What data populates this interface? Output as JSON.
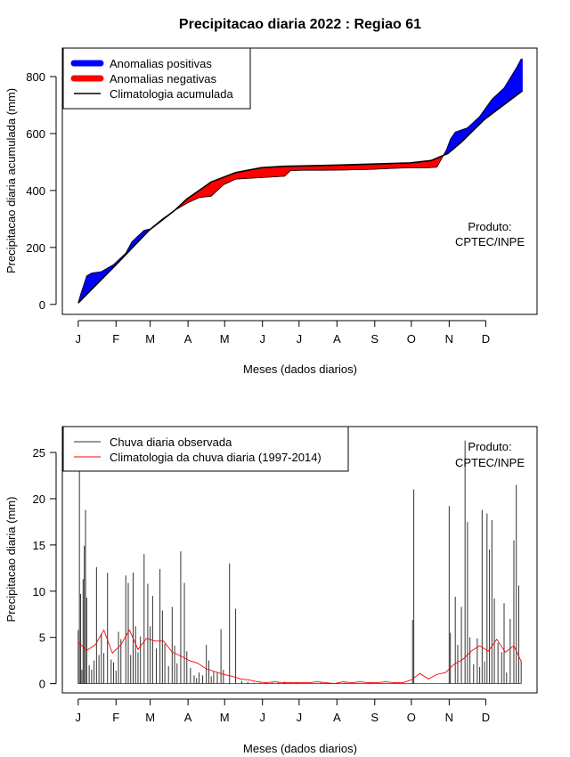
{
  "title": "Precipitacao diaria 2022 : Regiao 61",
  "colors": {
    "positive": "#0000ff",
    "negative": "#ff0000",
    "observed": "#333333",
    "climatology": "#ff0000",
    "line": "#000000"
  },
  "chart_data": [
    {
      "type": "area",
      "ylabel": "Precipitacao diaria acumulada (mm)",
      "xlabel": "Meses (dados diarios)",
      "months": [
        "J",
        "F",
        "M",
        "A",
        "M",
        "J",
        "J",
        "A",
        "S",
        "O",
        "N",
        "D"
      ],
      "xlim": [
        -12,
        377
      ],
      "ylim": [
        -35,
        900
      ],
      "yticks": [
        0,
        200,
        400,
        600,
        800
      ],
      "legend_position": "top-left",
      "legend": [
        {
          "label": "Anomalias positivas",
          "kind": "fill",
          "color": "#0000ff"
        },
        {
          "label": "Anomalias negativas",
          "kind": "fill",
          "color": "#ff0000"
        },
        {
          "label": "Climatologia acumulada",
          "kind": "line",
          "color": "#000000"
        }
      ],
      "annotation": [
        "Produto:",
        "CPTEC/INPE"
      ],
      "climatology_cumulative": {
        "day": [
          1,
          31,
          59,
          80,
          90,
          110,
          130,
          151,
          170,
          181,
          212,
          243,
          273,
          290,
          304,
          315,
          334,
          365
        ],
        "value": [
          5,
          135,
          260,
          330,
          370,
          430,
          463,
          480,
          485,
          486,
          489,
          493,
          497,
          505,
          530,
          570,
          650,
          750
        ]
      },
      "observed_cumulative": {
        "day": [
          1,
          3,
          8,
          12,
          20,
          30,
          40,
          45,
          55,
          60,
          70,
          80,
          90,
          100,
          110,
          120,
          130,
          150,
          170,
          175,
          185,
          200,
          220,
          240,
          260,
          273,
          288,
          295,
          303,
          306,
          310,
          320,
          330,
          340,
          350,
          360,
          364
        ],
        "value": [
          5,
          35,
          100,
          110,
          115,
          140,
          180,
          220,
          260,
          265,
          300,
          330,
          355,
          375,
          380,
          420,
          440,
          445,
          450,
          470,
          471,
          471,
          472,
          474,
          478,
          480,
          480,
          482,
          545,
          580,
          605,
          620,
          660,
          720,
          760,
          830,
          862
        ]
      }
    },
    {
      "type": "line",
      "ylabel": "Precipitacao diaria (mm)",
      "xlabel": "Meses (dados diarios)",
      "months": [
        "J",
        "F",
        "M",
        "A",
        "M",
        "J",
        "J",
        "A",
        "S",
        "O",
        "N",
        "D"
      ],
      "xlim": [
        -12,
        377
      ],
      "ylim": [
        -1,
        27.8
      ],
      "yticks": [
        0,
        5,
        10,
        15,
        20,
        25
      ],
      "legend_position": "top-left",
      "legend": [
        {
          "label": "Chuva diaria observada",
          "kind": "line",
          "color": "#333333"
        },
        {
          "label": "Climatologia da chuva diaria (1997-2014)",
          "kind": "line",
          "color": "#ff0000"
        }
      ],
      "annotation": [
        "Produto:",
        "CPTEC/INPE"
      ],
      "observed_daily": {
        "day": [
          1,
          2,
          3,
          4,
          5,
          6,
          7,
          8,
          10,
          12,
          14,
          16,
          18,
          20,
          22,
          25,
          28,
          30,
          32,
          34,
          36,
          40,
          42,
          44,
          46,
          48,
          50,
          52,
          55,
          58,
          60,
          62,
          65,
          68,
          70,
          72,
          75,
          78,
          80,
          82,
          85,
          88,
          90,
          93,
          96,
          98,
          100,
          103,
          106,
          108,
          110,
          112,
          115,
          118,
          120,
          125,
          130,
          135,
          140,
          145,
          150,
          155,
          160,
          165,
          170,
          175,
          180,
          200,
          220,
          240,
          260,
          275,
          276,
          305,
          306,
          310,
          312,
          315,
          318,
          320,
          322,
          325,
          328,
          330,
          332,
          334,
          336,
          338,
          340,
          342,
          345,
          348,
          350,
          352,
          355,
          358,
          360,
          362,
          364
        ],
        "value": [
          5.8,
          23,
          9.7,
          1.5,
          11.3,
          14.9,
          18.8,
          9.3,
          2,
          1.5,
          2.5,
          12.6,
          3.1,
          5.4,
          3.3,
          12,
          2.6,
          2.3,
          1.4,
          5.6,
          4.8,
          11.7,
          10.9,
          3.1,
          12,
          6.2,
          3.4,
          5.1,
          14,
          10.8,
          6.2,
          9.5,
          3.8,
          12.4,
          7.9,
          4.3,
          1.9,
          8.3,
          4.1,
          2.2,
          14.3,
          10.9,
          3.5,
          1.7,
          0.9,
          0.6,
          1.2,
          0.9,
          4.2,
          2.5,
          0.8,
          1.3,
          1.2,
          5.9,
          1.5,
          13,
          8.1,
          0.3,
          0.2,
          0.1,
          0.1,
          0.1,
          0.1,
          0.2,
          0.2,
          0.1,
          0.1,
          0.1,
          0.1,
          0.1,
          0.1,
          6.9,
          21,
          19.2,
          5.5,
          9.4,
          4.2,
          8.3,
          26.3,
          17.5,
          5,
          2.1,
          4.9,
          1.8,
          18.8,
          2.4,
          18.4,
          14.5,
          17.7,
          9.2,
          4.4,
          3.4,
          8.7,
          1.2,
          7,
          15.5,
          21.5,
          10.6,
          2.5
        ]
      },
      "climatology_daily": {
        "day": [
          1,
          8,
          15,
          22,
          29,
          36,
          43,
          50,
          57,
          64,
          71,
          78,
          85,
          92,
          99,
          106,
          113,
          120,
          127,
          134,
          141,
          148,
          155,
          162,
          169,
          176,
          183,
          190,
          197,
          204,
          211,
          218,
          225,
          232,
          239,
          246,
          253,
          260,
          267,
          274,
          281,
          288,
          295,
          302,
          309,
          316,
          323,
          330,
          337,
          344,
          351,
          358,
          364
        ],
        "value": [
          4.5,
          3.6,
          4.2,
          5.8,
          3.3,
          4.2,
          5.8,
          3.7,
          4.9,
          4.6,
          4.6,
          3.4,
          3.0,
          2.5,
          2.2,
          1.6,
          1.3,
          1.0,
          0.8,
          0.5,
          0.4,
          0.2,
          0.1,
          0.2,
          0.1,
          0.1,
          0.1,
          0.1,
          0.2,
          0.1,
          0.0,
          0.2,
          0.1,
          0.2,
          0.1,
          0.1,
          0.2,
          0.1,
          0.1,
          0.4,
          1.1,
          0.5,
          1.0,
          1.2,
          2.1,
          2.6,
          3.5,
          4.1,
          3.5,
          4.8,
          3.4,
          4.1,
          2.4
        ]
      }
    }
  ]
}
